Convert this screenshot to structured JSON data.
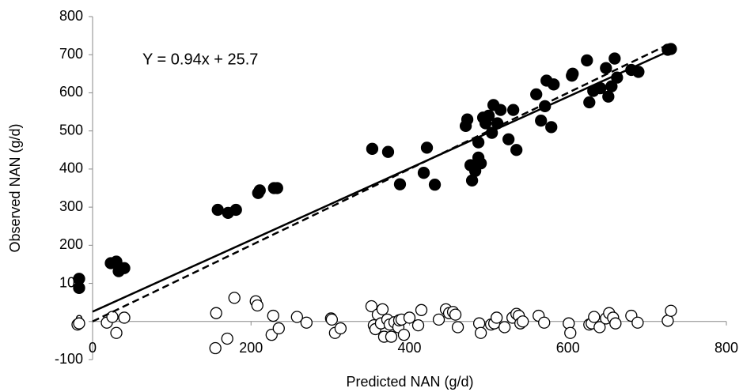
{
  "chart_data": {
    "type": "scatter",
    "annotation": "Y = 0.94x + 25.7",
    "x_label": "Predicted NAN (g/d)",
    "y_label": "Observed NAN (g/d)",
    "xlim": [
      0,
      800
    ],
    "xticks": [
      0,
      200,
      400,
      600,
      800
    ],
    "ylim": [
      -100,
      800
    ],
    "yticks": [
      -100,
      0,
      100,
      200,
      300,
      400,
      500,
      600,
      700,
      800
    ],
    "grid": false,
    "series": [
      {
        "style": "filled",
        "color": "#000000",
        "x": [
          -17,
          -17,
          23,
          30,
          33,
          40,
          158,
          171,
          181,
          209,
          211,
          229,
          233,
          353,
          373,
          388,
          418,
          422,
          432,
          471,
          473,
          477,
          479,
          483,
          487,
          487,
          490,
          493,
          496,
          500,
          504,
          506,
          511,
          515,
          525,
          531,
          535,
          560,
          566,
          571,
          573,
          579,
          582,
          605,
          606,
          624,
          627,
          632,
          641,
          648,
          651,
          655,
          659,
          662,
          680,
          689,
          726,
          730
        ],
        "values": [
          88,
          112,
          153,
          157,
          132,
          140,
          293,
          285,
          293,
          337,
          344,
          350,
          350,
          453,
          445,
          360,
          390,
          456,
          359,
          513,
          530,
          410,
          370,
          395,
          430,
          470,
          415,
          535,
          520,
          540,
          495,
          568,
          520,
          555,
          478,
          555,
          450,
          596,
          527,
          565,
          632,
          510,
          622,
          645,
          650,
          685,
          575,
          605,
          612,
          665,
          590,
          617,
          690,
          640,
          660,
          655,
          713,
          715
        ]
      },
      {
        "style": "open",
        "color": "#000000",
        "x": [
          -19,
          -17,
          18,
          25,
          30,
          40,
          156,
          155,
          170,
          179,
          206,
          208,
          226,
          228,
          235,
          258,
          270,
          301,
          302,
          306,
          313,
          352,
          355,
          357,
          360,
          364,
          366,
          368,
          372,
          375,
          377,
          381,
          386,
          387,
          390,
          393,
          400,
          411,
          415,
          437,
          446,
          450,
          455,
          458,
          461,
          488,
          490,
          503,
          507,
          510,
          520,
          530,
          535,
          538,
          540,
          543,
          563,
          570,
          601,
          603,
          627,
          630,
          633,
          640,
          648,
          652,
          657,
          660,
          680,
          688,
          726,
          730
        ],
        "values": [
          -8,
          -5,
          -3,
          12,
          -30,
          10,
          22,
          -70,
          -45,
          62,
          53,
          42,
          -35,
          15,
          -18,
          12,
          -3,
          8,
          5,
          -30,
          -18,
          40,
          -10,
          -20,
          18,
          -5,
          32,
          -40,
          5,
          -8,
          -40,
          -2,
          -15,
          3,
          5,
          -35,
          10,
          -10,
          30,
          5,
          32,
          22,
          25,
          18,
          -15,
          -5,
          -30,
          -8,
          -5,
          10,
          -15,
          10,
          20,
          15,
          -5,
          0,
          15,
          -3,
          -5,
          -30,
          -8,
          -5,
          12,
          -15,
          8,
          22,
          10,
          -5,
          15,
          -3,
          2,
          28
        ]
      },
      {
        "style": "solid-line",
        "color": "#000000",
        "x": [
          0,
          730
        ],
        "values": [
          25.7,
          711.9
        ]
      },
      {
        "style": "dashed-line",
        "color": "#000000",
        "x": [
          0,
          730
        ],
        "values": [
          0,
          730
        ]
      }
    ]
  }
}
